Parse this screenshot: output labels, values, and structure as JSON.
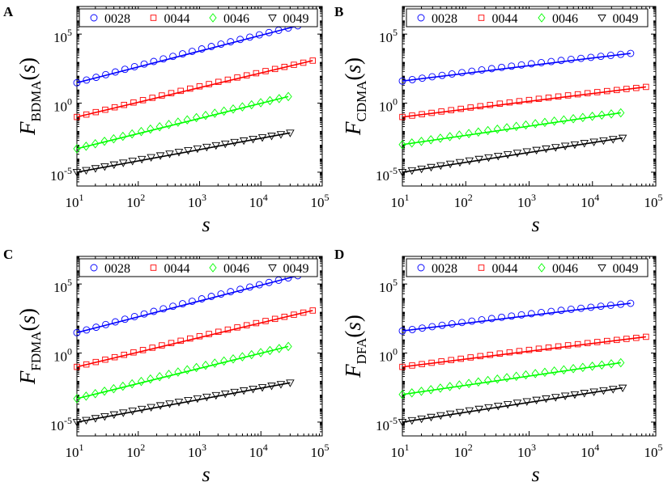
{
  "chart_data": [
    {
      "panel_label": "A",
      "type": "scatter",
      "ylabel": {
        "main": "F",
        "sub": "BDMA",
        "arg": "(s)"
      },
      "xlabel": "s",
      "xscale": "log",
      "yscale": "log",
      "xlim": [
        10,
        100000
      ],
      "ylim": [
        1e-06,
        10000000
      ],
      "x_ticks": [
        {
          "v": 10,
          "b": "10",
          "e": "1"
        },
        {
          "v": 100,
          "b": "10",
          "e": "2"
        },
        {
          "v": 1000,
          "b": "10",
          "e": "3"
        },
        {
          "v": 10000,
          "b": "10",
          "e": "4"
        },
        {
          "v": 100000,
          "b": "10",
          "e": "5"
        }
      ],
      "y_ticks": [
        {
          "v": 1e-05,
          "b": "10",
          "e": "-5"
        },
        {
          "v": 1,
          "b": "10",
          "e": "0"
        },
        {
          "v": 100000,
          "b": "10",
          "e": "5"
        }
      ],
      "legend_position": "top",
      "series": [
        {
          "name": "0028",
          "marker": "circle",
          "color": "#0000ff",
          "s_start": 10,
          "s_end": 40000,
          "y_start": 30,
          "y_end": 400000,
          "fit_slope": 1.14,
          "points": 24
        },
        {
          "name": "0044",
          "marker": "square",
          "color": "#ff0000",
          "s_start": 10,
          "s_end": 70000,
          "y_start": 0.1,
          "y_end": 1200,
          "fit_slope": 1.05,
          "points": 26
        },
        {
          "name": "0046",
          "marker": "diamond",
          "color": "#00ff00",
          "s_start": 10,
          "s_end": 28000,
          "y_start": 0.0005,
          "y_end": 3.0,
          "fit_slope": 1.1,
          "points": 24
        },
        {
          "name": "0049",
          "marker": "triangle-down",
          "color": "#000000",
          "s_start": 10,
          "s_end": 30000,
          "y_start": 1e-05,
          "y_end": 0.007,
          "fit_slope": 0.82,
          "points": 24
        }
      ]
    },
    {
      "panel_label": "B",
      "type": "scatter",
      "ylabel": {
        "main": "F",
        "sub": "CDMA",
        "arg": "(s)"
      },
      "xlabel": "s",
      "xscale": "log",
      "yscale": "log",
      "xlim": [
        10,
        100000
      ],
      "ylim": [
        1e-06,
        10000000
      ],
      "x_ticks": [
        {
          "v": 10,
          "b": "10",
          "e": "1"
        },
        {
          "v": 100,
          "b": "10",
          "e": "2"
        },
        {
          "v": 1000,
          "b": "10",
          "e": "3"
        },
        {
          "v": 10000,
          "b": "10",
          "e": "4"
        },
        {
          "v": 100000,
          "b": "10",
          "e": "5"
        }
      ],
      "y_ticks": [
        {
          "v": 1e-05,
          "b": "10",
          "e": "-5"
        },
        {
          "v": 1,
          "b": "10",
          "e": "0"
        },
        {
          "v": 100000,
          "b": "10",
          "e": "5"
        }
      ],
      "legend_position": "top",
      "series": [
        {
          "name": "0028",
          "marker": "circle",
          "color": "#0000ff",
          "s_start": 10,
          "s_end": 40000,
          "y_start": 40,
          "y_end": 4000,
          "fit_slope": 0.53,
          "points": 24
        },
        {
          "name": "0044",
          "marker": "square",
          "color": "#ff0000",
          "s_start": 10,
          "s_end": 70000,
          "y_start": 0.1,
          "y_end": 15,
          "fit_slope": 0.55,
          "points": 26
        },
        {
          "name": "0046",
          "marker": "diamond",
          "color": "#00ff00",
          "s_start": 10,
          "s_end": 28000,
          "y_start": 0.001,
          "y_end": 0.2,
          "fit_slope": 0.65,
          "points": 24
        },
        {
          "name": "0049",
          "marker": "triangle-down",
          "color": "#000000",
          "s_start": 10,
          "s_end": 30000,
          "y_start": 1e-05,
          "y_end": 0.003,
          "fit_slope": 0.72,
          "points": 24
        }
      ]
    },
    {
      "panel_label": "C",
      "type": "scatter",
      "ylabel": {
        "main": "F",
        "sub": "FDMA",
        "arg": "(s)"
      },
      "xlabel": "s",
      "xscale": "log",
      "yscale": "log",
      "xlim": [
        10,
        100000
      ],
      "ylim": [
        1e-06,
        10000000
      ],
      "x_ticks": [
        {
          "v": 10,
          "b": "10",
          "e": "1"
        },
        {
          "v": 100,
          "b": "10",
          "e": "2"
        },
        {
          "v": 1000,
          "b": "10",
          "e": "3"
        },
        {
          "v": 10000,
          "b": "10",
          "e": "4"
        },
        {
          "v": 100000,
          "b": "10",
          "e": "5"
        }
      ],
      "y_ticks": [
        {
          "v": 1e-05,
          "b": "10",
          "e": "-5"
        },
        {
          "v": 1,
          "b": "10",
          "e": "0"
        },
        {
          "v": 100000,
          "b": "10",
          "e": "5"
        }
      ],
      "legend_position": "top",
      "series": [
        {
          "name": "0028",
          "marker": "circle",
          "color": "#0000ff",
          "s_start": 10,
          "s_end": 40000,
          "y_start": 30,
          "y_end": 400000,
          "fit_slope": 1.14,
          "points": 24
        },
        {
          "name": "0044",
          "marker": "square",
          "color": "#ff0000",
          "s_start": 10,
          "s_end": 70000,
          "y_start": 0.1,
          "y_end": 1200,
          "fit_slope": 1.05,
          "points": 26
        },
        {
          "name": "0046",
          "marker": "diamond",
          "color": "#00ff00",
          "s_start": 10,
          "s_end": 28000,
          "y_start": 0.0005,
          "y_end": 3.0,
          "fit_slope": 1.1,
          "points": 24
        },
        {
          "name": "0049",
          "marker": "triangle-down",
          "color": "#000000",
          "s_start": 10,
          "s_end": 30000,
          "y_start": 1e-05,
          "y_end": 0.007,
          "fit_slope": 0.82,
          "points": 24
        }
      ]
    },
    {
      "panel_label": "D",
      "type": "scatter",
      "ylabel": {
        "main": "F",
        "sub": "DFA",
        "arg": "(s)"
      },
      "xlabel": "s",
      "xscale": "log",
      "yscale": "log",
      "xlim": [
        10,
        100000
      ],
      "ylim": [
        1e-06,
        10000000
      ],
      "x_ticks": [
        {
          "v": 10,
          "b": "10",
          "e": "1"
        },
        {
          "v": 100,
          "b": "10",
          "e": "2"
        },
        {
          "v": 1000,
          "b": "10",
          "e": "3"
        },
        {
          "v": 10000,
          "b": "10",
          "e": "4"
        },
        {
          "v": 100000,
          "b": "10",
          "e": "5"
        }
      ],
      "y_ticks": [
        {
          "v": 1e-05,
          "b": "10",
          "e": "-5"
        },
        {
          "v": 1,
          "b": "10",
          "e": "0"
        },
        {
          "v": 100000,
          "b": "10",
          "e": "5"
        }
      ],
      "legend_position": "top",
      "series": [
        {
          "name": "0028",
          "marker": "circle",
          "color": "#0000ff",
          "s_start": 10,
          "s_end": 40000,
          "y_start": 40,
          "y_end": 4000,
          "fit_slope": 0.55,
          "points": 24
        },
        {
          "name": "0044",
          "marker": "square",
          "color": "#ff0000",
          "s_start": 10,
          "s_end": 70000,
          "y_start": 0.1,
          "y_end": 15,
          "fit_slope": 0.55,
          "points": 26
        },
        {
          "name": "0046",
          "marker": "diamond",
          "color": "#00ff00",
          "s_start": 10,
          "s_end": 28000,
          "y_start": 0.001,
          "y_end": 0.2,
          "fit_slope": 0.65,
          "points": 24
        },
        {
          "name": "0049",
          "marker": "triangle-down",
          "color": "#000000",
          "s_start": 10,
          "s_end": 30000,
          "y_start": 1e-05,
          "y_end": 0.003,
          "fit_slope": 0.72,
          "points": 24
        }
      ]
    }
  ]
}
